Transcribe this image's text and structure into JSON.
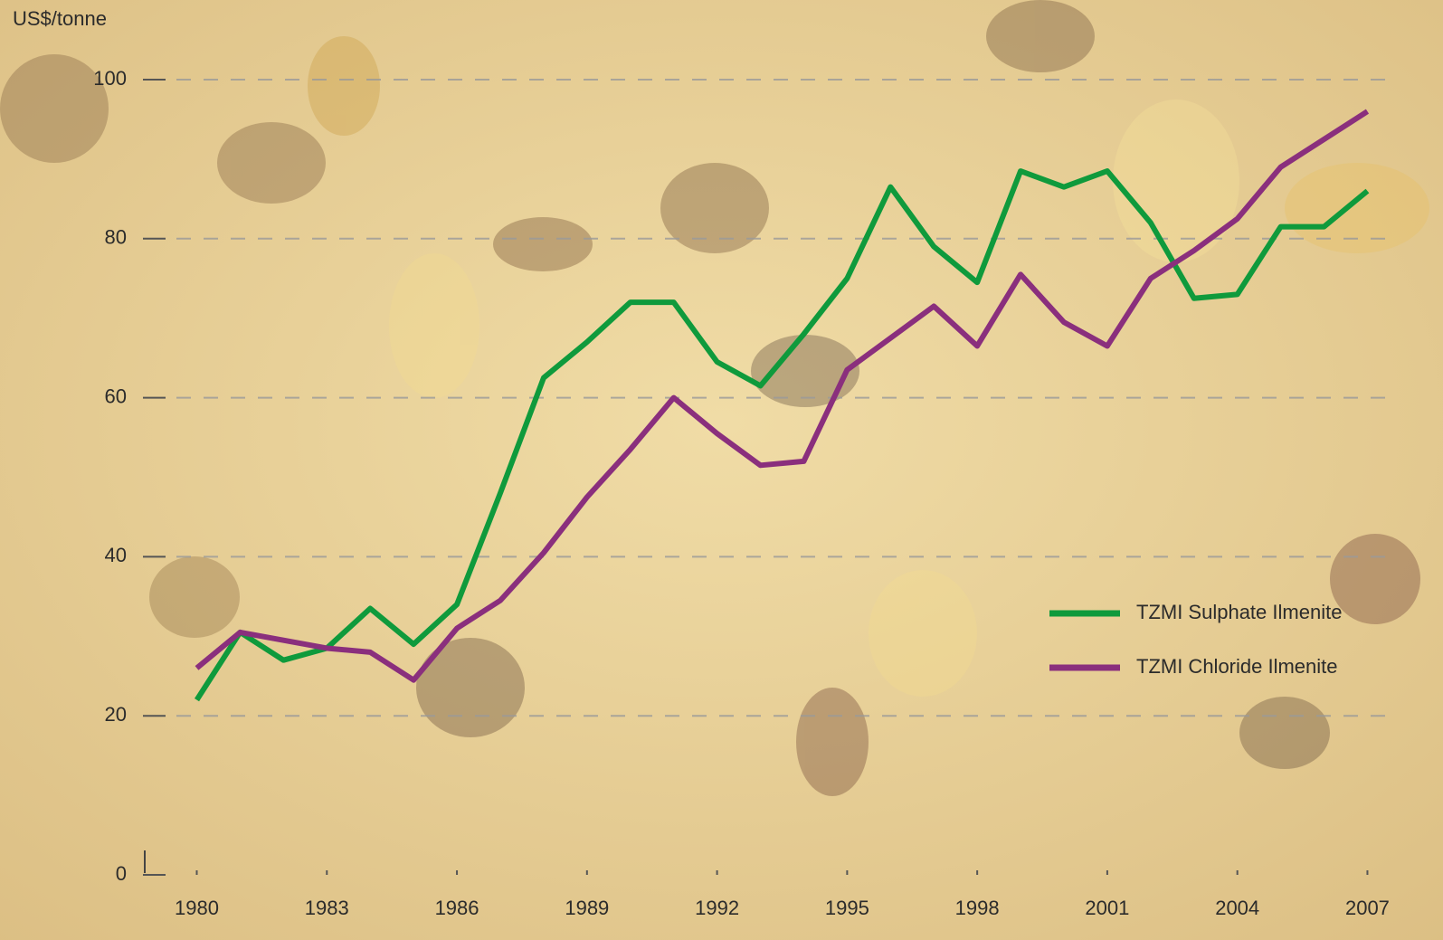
{
  "chart_data": {
    "type": "line",
    "y_label": "US$/tonne",
    "x": [
      1980,
      1981,
      1982,
      1983,
      1984,
      1985,
      1986,
      1987,
      1988,
      1989,
      1990,
      1991,
      1992,
      1993,
      1994,
      1995,
      1996,
      1997,
      1998,
      1999,
      2000,
      2001,
      2002,
      2003,
      2004,
      2005,
      2006,
      2007
    ],
    "series": [
      {
        "name": "TZMI Sulphate Ilmenite",
        "color": "#0f9a3c",
        "values": [
          22,
          30.5,
          27,
          28.5,
          33.5,
          29,
          34,
          48,
          62.5,
          67,
          72,
          72,
          64.5,
          61.5,
          68,
          75,
          86.5,
          79,
          74.5,
          88.5,
          86.5,
          88.5,
          82,
          72.5,
          73,
          81.5,
          81.5,
          86
        ]
      },
      {
        "name": "TZMI Chloride Ilmenite",
        "color": "#8a2f7d",
        "values": [
          26,
          30.5,
          29.5,
          28.5,
          28,
          24.5,
          31,
          34.5,
          40.5,
          47.5,
          53.5,
          60,
          55.5,
          51.5,
          52,
          63.5,
          67.5,
          71.5,
          66.5,
          75.5,
          69.5,
          66.5,
          75,
          78.5,
          82.5,
          89,
          92.5,
          96
        ]
      }
    ],
    "xlim": [
      1978.8,
      2007.7
    ],
    "xticks": [
      1980,
      1983,
      1986,
      1989,
      1992,
      1995,
      1998,
      2001,
      2004,
      2007
    ],
    "ylim": [
      0,
      100
    ],
    "yticks": [
      0,
      20,
      40,
      60,
      80,
      100
    ],
    "grid": true,
    "legend": "lower right"
  }
}
